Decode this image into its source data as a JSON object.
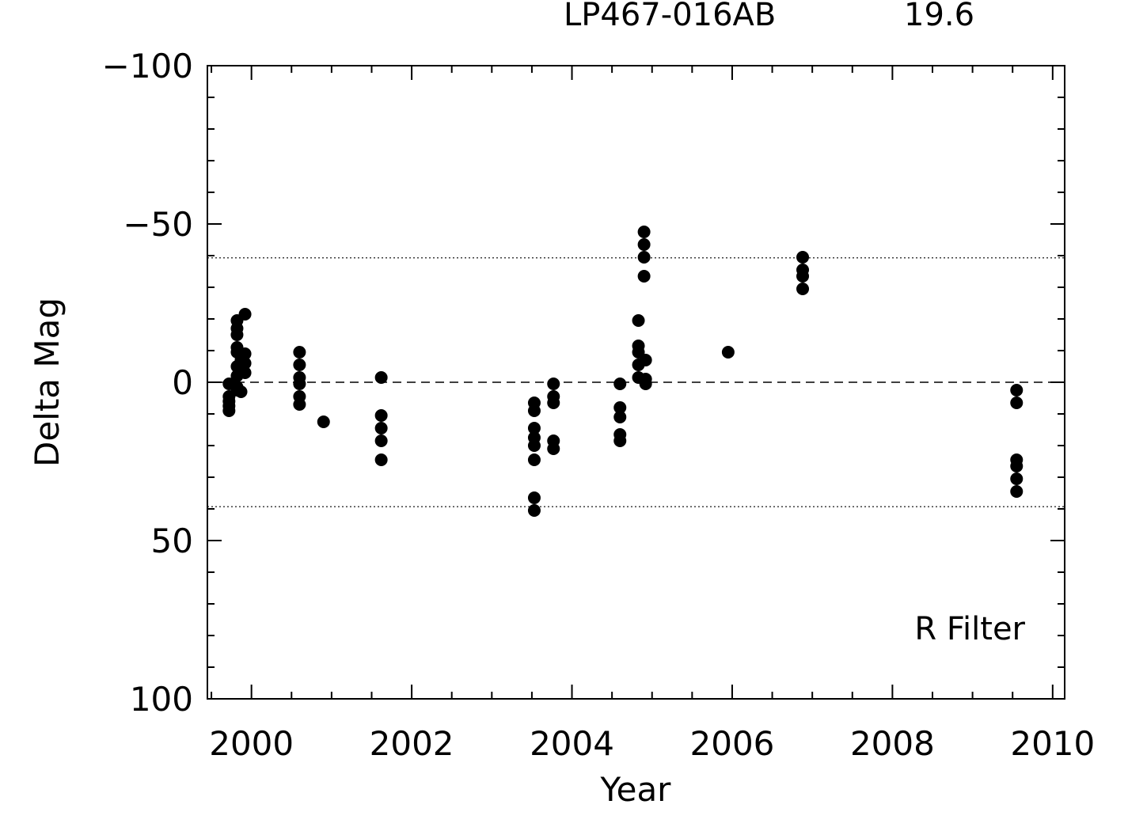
{
  "header": {
    "object_name": "LP467-016AB",
    "value_text": "19.6"
  },
  "chart_data": {
    "type": "scatter",
    "title": "",
    "xlabel": "Year",
    "ylabel": "Delta Mag",
    "annotation": "R Filter",
    "xlim": [
      1999.45,
      2010.15
    ],
    "ylim": [
      -100,
      100
    ],
    "y_inverted": true,
    "grid": false,
    "x_ticks": [
      2000,
      2002,
      2004,
      2006,
      2008,
      2010
    ],
    "x_tick_labels": [
      "2000",
      "2002",
      "2004",
      "2006",
      "2008",
      "2010"
    ],
    "y_ticks": [
      -100,
      -50,
      0,
      50,
      100
    ],
    "y_tick_labels": [
      "−100",
      "−50",
      "0",
      "50",
      "100"
    ],
    "reference_lines": [
      {
        "y": 0,
        "style": "dashed"
      },
      {
        "y": -39.3,
        "style": "dotted"
      },
      {
        "y": 39.3,
        "style": "dotted"
      }
    ],
    "marker_color": "#000000",
    "points": [
      {
        "x": 1999.72,
        "y": 0.5
      },
      {
        "x": 1999.72,
        "y": 4.5
      },
      {
        "x": 1999.72,
        "y": 7.5
      },
      {
        "x": 1999.72,
        "y": 9.0
      },
      {
        "x": 1999.72,
        "y": 6.0
      },
      {
        "x": 1999.82,
        "y": -19.5
      },
      {
        "x": 1999.82,
        "y": -17.0
      },
      {
        "x": 1999.82,
        "y": -15.0
      },
      {
        "x": 1999.82,
        "y": -11.0
      },
      {
        "x": 1999.82,
        "y": -9.5
      },
      {
        "x": 1999.82,
        "y": -5.0
      },
      {
        "x": 1999.82,
        "y": -2.0
      },
      {
        "x": 1999.82,
        "y": 1.5
      },
      {
        "x": 1999.82,
        "y": 2.5
      },
      {
        "x": 1999.87,
        "y": -7.0
      },
      {
        "x": 1999.87,
        "y": -4.5
      },
      {
        "x": 1999.87,
        "y": 3.0
      },
      {
        "x": 1999.92,
        "y": -21.5
      },
      {
        "x": 1999.92,
        "y": -9.0
      },
      {
        "x": 1999.92,
        "y": -6.0
      },
      {
        "x": 1999.92,
        "y": -3.0
      },
      {
        "x": 2000.6,
        "y": -9.5
      },
      {
        "x": 2000.6,
        "y": -5.5
      },
      {
        "x": 2000.6,
        "y": -1.5
      },
      {
        "x": 2000.6,
        "y": 0.5
      },
      {
        "x": 2000.6,
        "y": 4.5
      },
      {
        "x": 2000.6,
        "y": 7.0
      },
      {
        "x": 2000.9,
        "y": 12.5
      },
      {
        "x": 2001.62,
        "y": -1.5
      },
      {
        "x": 2001.62,
        "y": 10.5
      },
      {
        "x": 2001.62,
        "y": 14.5
      },
      {
        "x": 2001.62,
        "y": 18.5
      },
      {
        "x": 2001.62,
        "y": 24.5
      },
      {
        "x": 2003.53,
        "y": 6.5
      },
      {
        "x": 2003.53,
        "y": 9.0
      },
      {
        "x": 2003.53,
        "y": 14.5
      },
      {
        "x": 2003.53,
        "y": 17.5
      },
      {
        "x": 2003.53,
        "y": 20.0
      },
      {
        "x": 2003.53,
        "y": 24.5
      },
      {
        "x": 2003.53,
        "y": 36.5
      },
      {
        "x": 2003.53,
        "y": 40.5
      },
      {
        "x": 2003.77,
        "y": 0.5
      },
      {
        "x": 2003.77,
        "y": 4.5
      },
      {
        "x": 2003.77,
        "y": 6.5
      },
      {
        "x": 2003.77,
        "y": 18.5
      },
      {
        "x": 2003.77,
        "y": 21.0
      },
      {
        "x": 2004.6,
        "y": 0.5
      },
      {
        "x": 2004.6,
        "y": 8.0
      },
      {
        "x": 2004.6,
        "y": 11.0
      },
      {
        "x": 2004.6,
        "y": 16.5
      },
      {
        "x": 2004.6,
        "y": 18.5
      },
      {
        "x": 2004.83,
        "y": -19.5
      },
      {
        "x": 2004.83,
        "y": -11.5
      },
      {
        "x": 2004.83,
        "y": -9.5
      },
      {
        "x": 2004.83,
        "y": -5.5
      },
      {
        "x": 2004.83,
        "y": -1.5
      },
      {
        "x": 2004.9,
        "y": -47.5
      },
      {
        "x": 2004.9,
        "y": -43.5
      },
      {
        "x": 2004.9,
        "y": -39.5
      },
      {
        "x": 2004.9,
        "y": -33.5
      },
      {
        "x": 2004.92,
        "y": -7.0
      },
      {
        "x": 2004.92,
        "y": -1.0
      },
      {
        "x": 2004.92,
        "y": 0.5
      },
      {
        "x": 2005.95,
        "y": -9.5
      },
      {
        "x": 2006.88,
        "y": -39.5
      },
      {
        "x": 2006.88,
        "y": -35.5
      },
      {
        "x": 2006.88,
        "y": -33.5
      },
      {
        "x": 2006.88,
        "y": -29.5
      },
      {
        "x": 2009.55,
        "y": 2.5
      },
      {
        "x": 2009.55,
        "y": 6.5
      },
      {
        "x": 2009.55,
        "y": 24.5
      },
      {
        "x": 2009.55,
        "y": 26.5
      },
      {
        "x": 2009.55,
        "y": 30.5
      },
      {
        "x": 2009.55,
        "y": 34.5
      }
    ]
  }
}
